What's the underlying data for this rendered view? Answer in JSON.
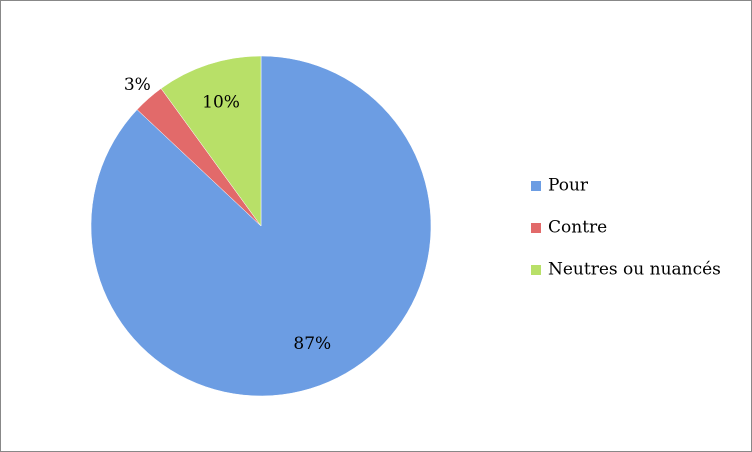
{
  "chart_data": {
    "type": "pie",
    "categories": [
      "Pour",
      "Contre",
      "Neutres ou nuancés"
    ],
    "values": [
      87,
      3,
      10
    ],
    "value_labels": [
      "87%",
      "3%",
      "10%"
    ],
    "colors": [
      "#6c9de3",
      "#e26a6a",
      "#b8e068"
    ],
    "legend": "right"
  }
}
